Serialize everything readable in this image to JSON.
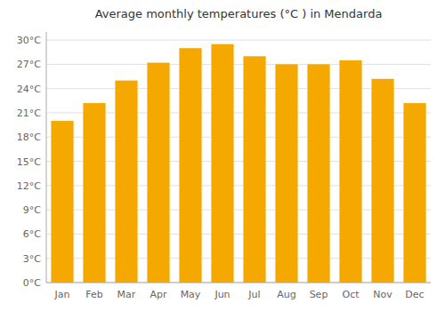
{
  "chart_data": {
    "type": "bar",
    "title": "Average monthly temperatures (°C ) in Mendarda",
    "categories": [
      "Jan",
      "Feb",
      "Mar",
      "Apr",
      "May",
      "Jun",
      "Jul",
      "Aug",
      "Sep",
      "Oct",
      "Nov",
      "Dec"
    ],
    "values": [
      20.0,
      22.2,
      25.0,
      27.2,
      29.0,
      29.5,
      28.0,
      27.0,
      27.0,
      27.5,
      25.2,
      22.2
    ],
    "color": "#F5A800",
    "ylim": [
      0,
      31
    ],
    "yticks": [
      {
        "value": 0,
        "label": "0°C"
      },
      {
        "value": 3,
        "label": "3°C"
      },
      {
        "value": 6,
        "label": "6°C"
      },
      {
        "value": 9,
        "label": "9°C"
      },
      {
        "value": 12,
        "label": "12°C"
      },
      {
        "value": 15,
        "label": "15°C"
      },
      {
        "value": 18,
        "label": "18°C"
      },
      {
        "value": 21,
        "label": "21°C"
      },
      {
        "value": 24,
        "label": "24°C"
      },
      {
        "value": 27,
        "label": "27°C"
      },
      {
        "value": 30,
        "label": "30°C"
      }
    ],
    "grid": true
  }
}
